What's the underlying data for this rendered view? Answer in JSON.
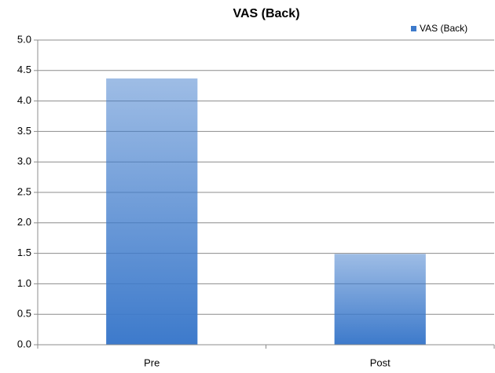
{
  "chart_data": {
    "type": "bar",
    "title": "VAS (Back)",
    "categories": [
      "Pre",
      "Post"
    ],
    "series": [
      {
        "name": "VAS (Back)",
        "color": "#3d7acb",
        "values": [
          4.37,
          1.49
        ]
      }
    ],
    "ylim": [
      0,
      5
    ],
    "yticks": [
      {
        "value": 0,
        "label": "0.0"
      },
      0.5,
      {
        "value": 1,
        "label": "1.0"
      },
      1.5,
      {
        "value": 2,
        "label": "2.0"
      },
      2.5,
      {
        "value": 3,
        "label": "3.0"
      },
      3.5,
      {
        "value": 4,
        "label": "4.0"
      },
      4.5,
      {
        "value": 5,
        "label": "5.0"
      }
    ],
    "grid": true,
    "legend": "top-right"
  }
}
